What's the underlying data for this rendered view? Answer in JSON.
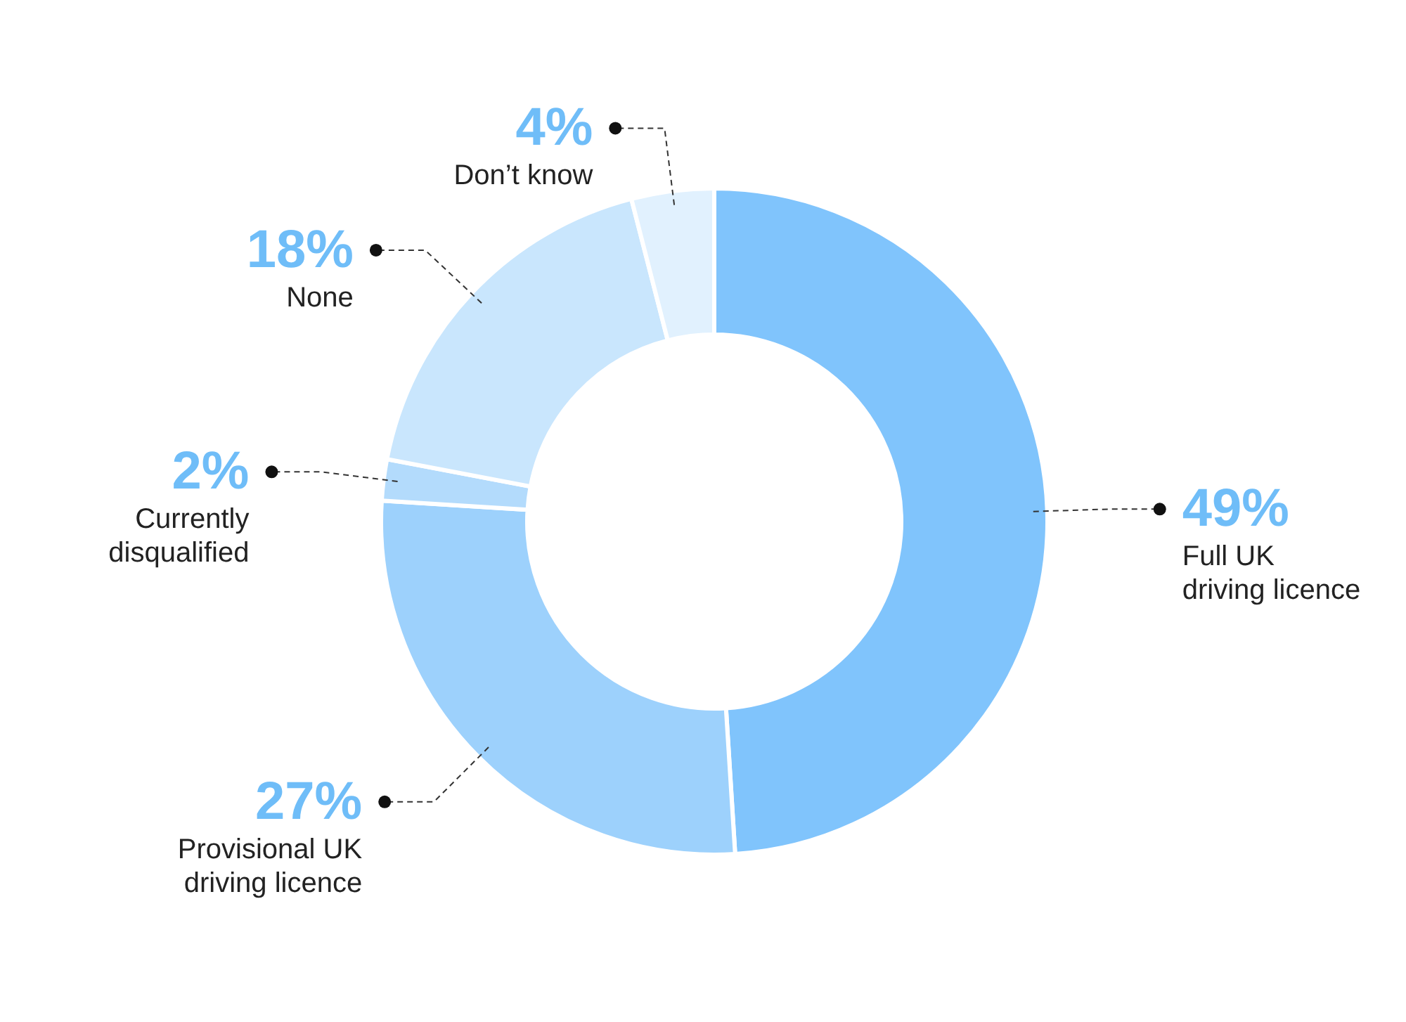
{
  "chart_data": {
    "type": "donut",
    "categories": [
      "Full UK driving licence",
      "Provisional UK driving licence",
      "Currently disqualified",
      "None",
      "Don’t know"
    ],
    "values": [
      49,
      27,
      2,
      18,
      4
    ],
    "value_labels": [
      "49%",
      "27%",
      "2%",
      "18%",
      "4%"
    ],
    "colors": [
      "#80c4fc",
      "#9dd1fc",
      "#b3dbfc",
      "#c9e6fd",
      "#e1f1fe"
    ]
  }
}
